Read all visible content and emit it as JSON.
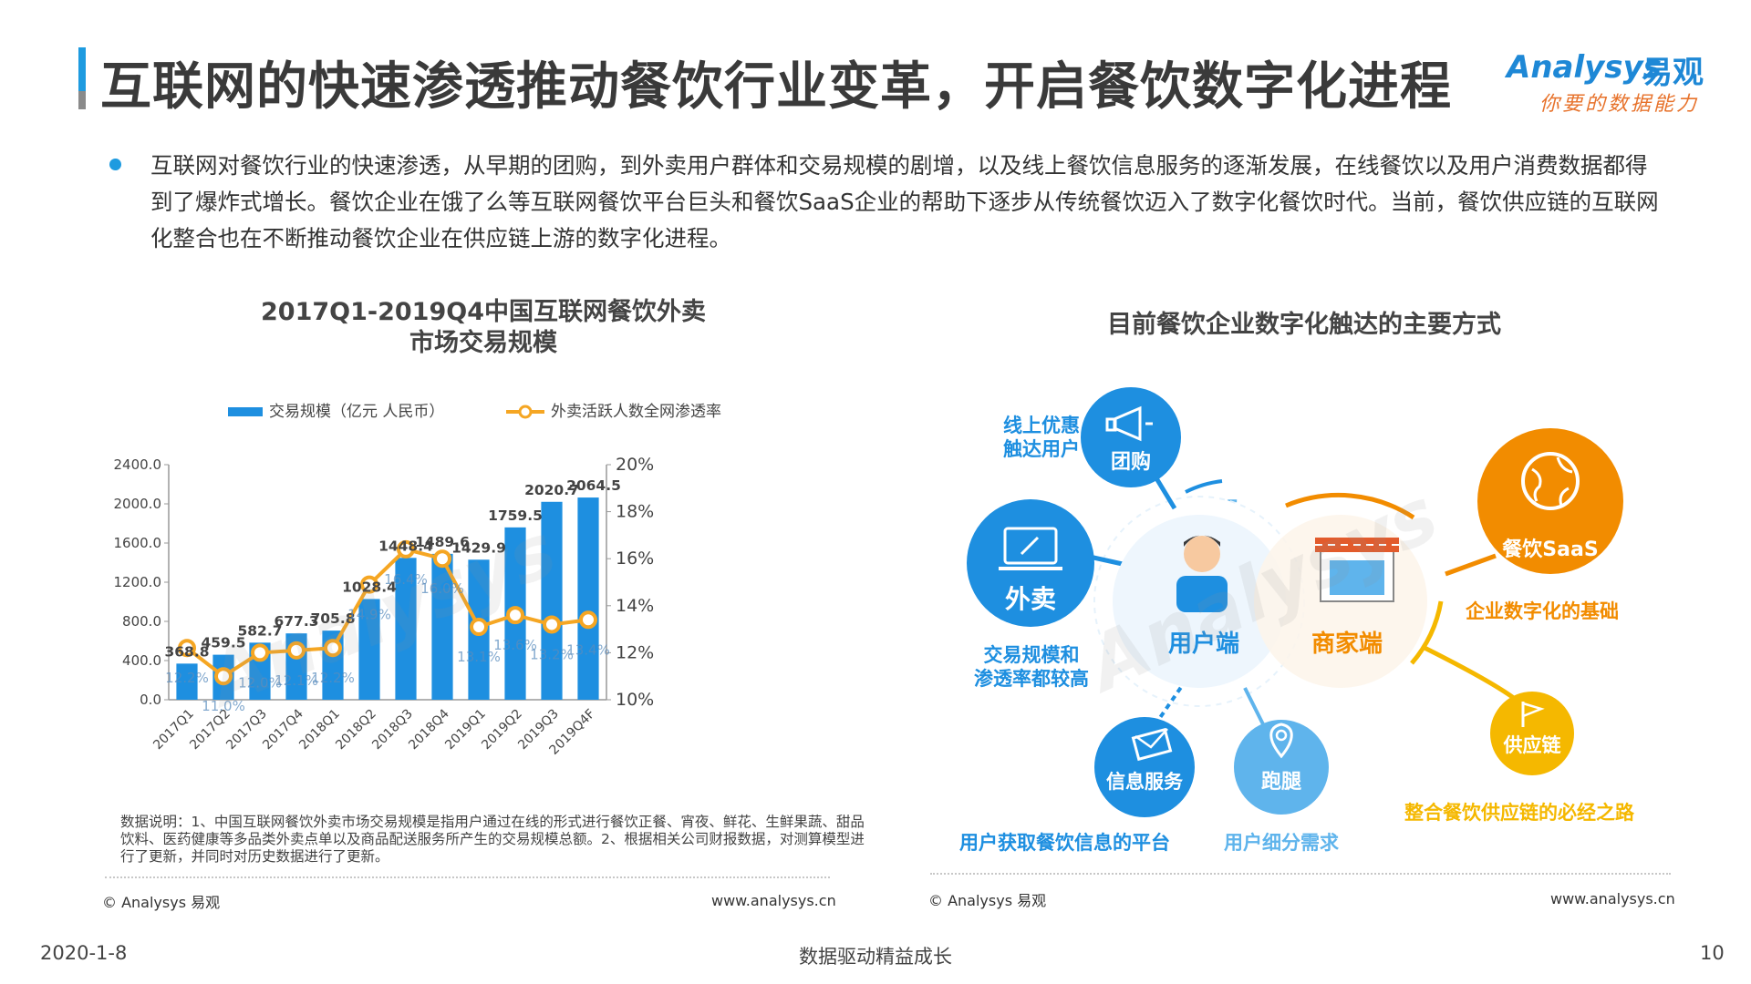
{
  "header": {
    "title": "互联网的快速渗透推动餐饮行业变革，开启餐饮数字化进程",
    "logo_en": "Analysys",
    "logo_cn": "易观",
    "logo_slogan": "你要的数据能力"
  },
  "intro": {
    "text": "互联网对餐饮行业的快速渗透，从早期的团购，到外卖用户群体和交易规模的剧增，以及线上餐饮信息服务的逐渐发展，在线餐饮以及用户消费数据都得到了爆炸式增长。餐饮企业在饿了么等互联网餐饮平台巨头和餐饮SaaS企业的帮助下逐步从传统餐饮迈入了数字化餐饮时代。当前，餐饮供应链的互联网化整合也在不断推动餐饮企业在供应链上游的数字化进程。"
  },
  "left_panel": {
    "title_line1": "2017Q1-2019Q4中国互联网餐饮外卖",
    "title_line2": "市场交易规模",
    "note": "数据说明：1、中国互联网餐饮外卖市场交易规模是指用户通过在线的形式进行餐饮正餐、宵夜、鲜花、生鲜果蔬、甜品饮料、医药健康等多品类外卖点单以及商品配送服务所产生的交易规模总额。2、根据相关公司财报数据，对测算模型进行了更新，并同时对历史数据进行了更新。",
    "copyright": "© Analysys 易观",
    "url": "www.analysys.cn"
  },
  "chart_data": {
    "type": "bar",
    "categories": [
      "2017Q1",
      "2017Q2",
      "2017Q3",
      "2017Q4",
      "2018Q1",
      "2018Q2",
      "2018Q3",
      "2018Q4",
      "2019Q1",
      "2019Q2",
      "2019Q3",
      "2019Q4F"
    ],
    "series": [
      {
        "name": "交易规模（亿元 人民币）",
        "type": "bar",
        "axis": "left",
        "color": "#1e8fe0",
        "values": [
          368.8,
          459.5,
          582.7,
          677.3,
          705.8,
          1028.4,
          1448.4,
          1489.6,
          1429.9,
          1759.5,
          2020.7,
          2064.5
        ],
        "labels": [
          "368.8",
          "459.5",
          "582.7",
          "677.3",
          "705.8",
          "1028.4",
          "1448.4",
          "1489.6",
          "1429.9",
          "1759.5",
          "2020.7",
          "2064.5"
        ]
      },
      {
        "name": "外卖活跃人数全网渗透率",
        "type": "line",
        "axis": "right",
        "color": "#f5a623",
        "values": [
          12.2,
          11.0,
          12.0,
          12.1,
          12.2,
          14.9,
          16.4,
          16.0,
          13.1,
          13.6,
          13.2,
          13.4
        ],
        "labels": [
          "12.2%",
          "11.0%",
          "12.0%",
          "12.1%",
          "12.2%",
          "14.9%",
          "16.4%",
          "16.0%",
          "13.1%",
          "13.6%",
          "13.2%",
          "13.4%"
        ]
      }
    ],
    "ylim_left": [
      0,
      2400
    ],
    "yticks_left": [
      "0.0",
      "400.0",
      "800.0",
      "1200.0",
      "1600.0",
      "2000.0",
      "2400.0"
    ],
    "ylim_right": [
      10,
      20
    ],
    "yticks_right": [
      "10%",
      "12%",
      "14%",
      "16%",
      "18%",
      "20%"
    ],
    "legend_position": "top",
    "grid": false
  },
  "right_panel": {
    "title": "目前餐饮企业数字化触达的主要方式",
    "center_user": "用户端",
    "center_merchant": "商家端",
    "nodes": {
      "tuangou": {
        "label": "团购",
        "caption": "线上优惠\n触达用户"
      },
      "waimai": {
        "label": "外卖",
        "caption": "交易规模和\n渗透率都较高"
      },
      "xinxi": {
        "label": "信息服务",
        "caption": "用户获取餐饮信息的平台"
      },
      "paotui": {
        "label": "跑腿",
        "caption": "用户细分需求"
      },
      "saas": {
        "label": "餐饮SaaS",
        "caption": "企业数字化的基础"
      },
      "gongying": {
        "label": "供应链",
        "caption": "整合餐饮供应链的必经之路"
      }
    },
    "colors": {
      "blue": "#1e8fe0",
      "light_blue": "#5fb4ec",
      "orange": "#f28c00",
      "yellow": "#f5b800"
    },
    "copyright": "© Analysys 易观",
    "url": "www.analysys.cn"
  },
  "footer": {
    "date": "2020-1-8",
    "center": "数据驱动精益成长",
    "page": "10"
  }
}
